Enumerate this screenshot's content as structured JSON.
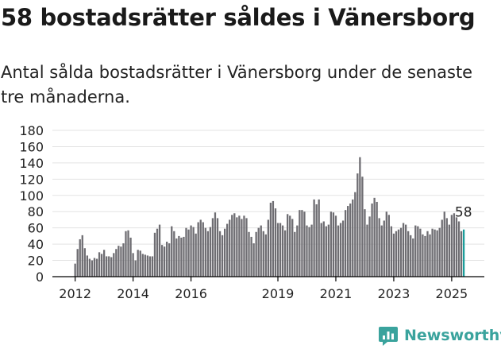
{
  "header": {
    "title": "58 bostadsrätter såldes i Vänersborg",
    "subtitle": "Antal sålda bostadsrätter i Vänersborg under de senaste tre månaderna."
  },
  "brand": {
    "name": "Newsworthy",
    "icon": "newsworthy-chart-icon",
    "color": "#3aa39d"
  },
  "colors": {
    "bar": "#6e6d72",
    "highlight": "#1a9c9a",
    "grid": "#e3e3e3",
    "axis": "#000000"
  },
  "chart_data": {
    "type": "bar",
    "title": "",
    "xlabel": "",
    "ylabel": "",
    "ylim": [
      0,
      180
    ],
    "yticks": [
      0,
      20,
      40,
      60,
      80,
      100,
      120,
      140,
      160,
      180
    ],
    "xticks": [
      "2012",
      "2014",
      "2016",
      "2019",
      "2021",
      "2023",
      "2025"
    ],
    "grid": true,
    "highlight_label": "58",
    "values": [
      16,
      34,
      46,
      51,
      35,
      26,
      22,
      20,
      23,
      22,
      30,
      28,
      33,
      25,
      25,
      24,
      29,
      34,
      38,
      37,
      41,
      56,
      57,
      48,
      29,
      20,
      33,
      32,
      28,
      27,
      26,
      25,
      25,
      54,
      59,
      64,
      39,
      37,
      43,
      41,
      62,
      56,
      47,
      50,
      48,
      49,
      60,
      58,
      63,
      61,
      53,
      67,
      70,
      67,
      60,
      56,
      61,
      72,
      79,
      72,
      56,
      51,
      59,
      65,
      70,
      76,
      78,
      73,
      75,
      71,
      75,
      72,
      55,
      49,
      41,
      55,
      60,
      63,
      56,
      52,
      70,
      91,
      93,
      84,
      66,
      66,
      63,
      57,
      77,
      75,
      71,
      55,
      63,
      82,
      82,
      80,
      63,
      61,
      64,
      95,
      89,
      95,
      66,
      68,
      62,
      64,
      80,
      79,
      75,
      63,
      66,
      69,
      82,
      87,
      90,
      95,
      104,
      127,
      147,
      123,
      83,
      64,
      74,
      90,
      97,
      92,
      72,
      63,
      69,
      80,
      76,
      62,
      53,
      56,
      58,
      60,
      66,
      64,
      56,
      51,
      47,
      63,
      62,
      59,
      52,
      50,
      56,
      52,
      59,
      58,
      57,
      60,
      70,
      80,
      72,
      64,
      76,
      78,
      73,
      68,
      56,
      58
    ]
  }
}
